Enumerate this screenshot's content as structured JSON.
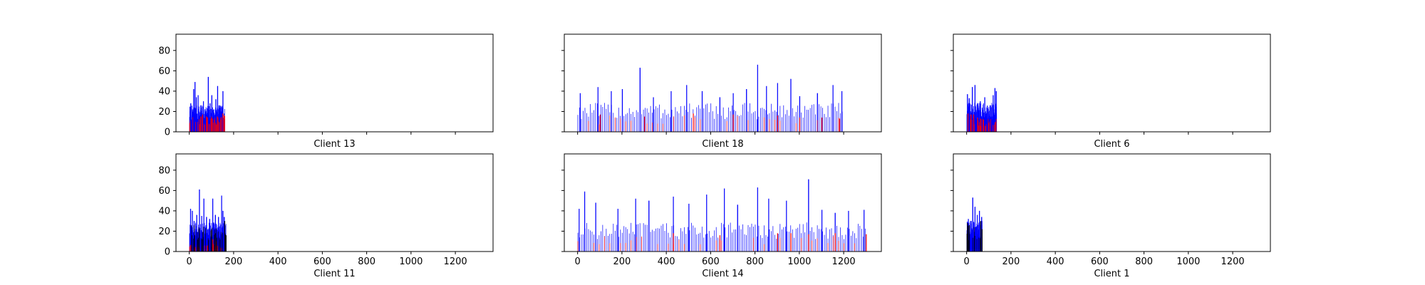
{
  "chart_data": [
    {
      "type": "bar",
      "xlabel": "Client 13",
      "xlim": [
        -60,
        1370
      ],
      "ylim": [
        0,
        96
      ],
      "xticks": [
        0,
        200,
        400,
        600,
        800,
        1000,
        1200
      ],
      "xtick_labels_visible": false,
      "yticks": [
        0,
        20,
        40,
        60,
        80
      ],
      "yticks_visible": true,
      "grid": false,
      "n_bars": 160,
      "series": [
        {
          "color": "#0000ff",
          "peaks": [
            [
              5,
              28
            ],
            [
              12,
              22
            ],
            [
              18,
              42
            ],
            [
              24,
              49
            ],
            [
              30,
              34
            ],
            [
              38,
              36
            ],
            [
              50,
              26
            ],
            [
              62,
              30
            ],
            [
              72,
              20
            ],
            [
              84,
              54
            ],
            [
              92,
              28
            ],
            [
              100,
              36
            ],
            [
              108,
              22
            ],
            [
              118,
              32
            ],
            [
              126,
              45
            ],
            [
              134,
              26
            ],
            [
              142,
              20
            ],
            [
              150,
              40
            ],
            [
              156,
              18
            ]
          ],
          "base": 20
        },
        {
          "color": "#ff0000",
          "peaks": [
            [
              50,
              15
            ],
            [
              58,
              17
            ],
            [
              80,
              14
            ],
            [
              96,
              13
            ],
            [
              112,
              12
            ],
            [
              124,
              15
            ],
            [
              140,
              12
            ],
            [
              150,
              18
            ],
            [
              156,
              16
            ]
          ],
          "base": 12
        }
      ]
    },
    {
      "type": "bar",
      "xlabel": "Client 18",
      "xlim": [
        -60,
        1370
      ],
      "ylim": [
        0,
        96
      ],
      "xticks": [
        0,
        200,
        400,
        600,
        800,
        1000,
        1200
      ],
      "xtick_labels_visible": false,
      "yticks": [
        0,
        20,
        40,
        60,
        80
      ],
      "yticks_visible": false,
      "grid": false,
      "n_bars": 1200,
      "series": [
        {
          "color": "#0000ff",
          "peaks": [
            [
              10,
              38
            ],
            [
              90,
              44
            ],
            [
              150,
              40
            ],
            [
              200,
              42
            ],
            [
              280,
              63
            ],
            [
              340,
              34
            ],
            [
              420,
              40
            ],
            [
              490,
              46
            ],
            [
              560,
              40
            ],
            [
              640,
              34
            ],
            [
              700,
              38
            ],
            [
              760,
              42
            ],
            [
              810,
              66
            ],
            [
              850,
              45
            ],
            [
              900,
              48
            ],
            [
              960,
              52
            ],
            [
              1000,
              35
            ],
            [
              1080,
              38
            ],
            [
              1150,
              46
            ],
            [
              1190,
              40
            ]
          ],
          "base": 22
        },
        {
          "color": "#ff0000",
          "peaks": [
            [
              100,
              17
            ],
            [
              300,
              15
            ],
            [
              520,
              18
            ],
            [
              700,
              17
            ],
            [
              900,
              16
            ],
            [
              1000,
              14
            ],
            [
              1100,
              14
            ],
            [
              1180,
              13
            ]
          ],
          "base": 13
        }
      ]
    },
    {
      "type": "bar",
      "xlabel": "Client 6",
      "xlim": [
        -60,
        1370
      ],
      "ylim": [
        0,
        96
      ],
      "xticks": [
        0,
        200,
        400,
        600,
        800,
        1000,
        1200
      ],
      "xtick_labels_visible": false,
      "yticks": [
        0,
        20,
        40,
        60,
        80
      ],
      "yticks_visible": false,
      "grid": false,
      "n_bars": 135,
      "series": [
        {
          "color": "#0000ff",
          "peaks": [
            [
              2,
              37
            ],
            [
              10,
              33
            ],
            [
              24,
              44
            ],
            [
              36,
              46
            ],
            [
              48,
              28
            ],
            [
              60,
              30
            ],
            [
              80,
              34
            ],
            [
              90,
              24
            ],
            [
              104,
              26
            ],
            [
              118,
              36
            ],
            [
              126,
              43
            ],
            [
              132,
              40
            ]
          ],
          "base": 22
        },
        {
          "color": "#ff0000",
          "peaks": [
            [
              4,
              18
            ],
            [
              18,
              17
            ],
            [
              30,
              17
            ],
            [
              48,
              14
            ],
            [
              60,
              13
            ],
            [
              74,
              12
            ]
          ],
          "base": 10
        }
      ]
    },
    {
      "type": "bar",
      "xlabel": "Client 11",
      "xlim": [
        -60,
        1370
      ],
      "ylim": [
        0,
        96
      ],
      "xticks": [
        0,
        200,
        400,
        600,
        800,
        1000,
        1200
      ],
      "xtick_labels": [
        "0",
        "200",
        "400",
        "600",
        "800",
        "1000",
        "1200"
      ],
      "xtick_labels_visible": true,
      "yticks": [
        0,
        20,
        40,
        60,
        80
      ],
      "yticks_visible": true,
      "grid": false,
      "n_bars": 165,
      "series": [
        {
          "color": "#0000ff",
          "peaks": [
            [
              4,
              42
            ],
            [
              12,
              40
            ],
            [
              20,
              30
            ],
            [
              32,
              36
            ],
            [
              44,
              61
            ],
            [
              54,
              35
            ],
            [
              64,
              52
            ],
            [
              76,
              34
            ],
            [
              90,
              32
            ],
            [
              104,
              52
            ],
            [
              116,
              36
            ],
            [
              130,
              34
            ],
            [
              144,
              55
            ],
            [
              150,
              40
            ],
            [
              156,
              34
            ]
          ],
          "base": 22
        },
        {
          "color": "#ff0000",
          "peaks": [
            [
              104,
              12
            ],
            [
              120,
              10
            ]
          ],
          "base": 6
        },
        {
          "color": "#000000",
          "peaks": [
            [
              158,
              30
            ],
            [
              164,
              16
            ]
          ],
          "base": 20
        }
      ]
    },
    {
      "type": "bar",
      "xlabel": "Client 14",
      "xlim": [
        -60,
        1370
      ],
      "ylim": [
        0,
        96
      ],
      "xticks": [
        0,
        200,
        400,
        600,
        800,
        1000,
        1200
      ],
      "xtick_labels": [
        "0",
        "200",
        "400",
        "600",
        "800",
        "1000",
        "1200"
      ],
      "xtick_labels_visible": true,
      "yticks": [
        0,
        20,
        40,
        60,
        80
      ],
      "yticks_visible": false,
      "grid": false,
      "n_bars": 1300,
      "series": [
        {
          "color": "#0000ff",
          "peaks": [
            [
              5,
              42
            ],
            [
              30,
              59
            ],
            [
              80,
              48
            ],
            [
              180,
              42
            ],
            [
              260,
              52
            ],
            [
              320,
              50
            ],
            [
              430,
              54
            ],
            [
              500,
              47
            ],
            [
              580,
              56
            ],
            [
              660,
              62
            ],
            [
              720,
              46
            ],
            [
              810,
              63
            ],
            [
              860,
              52
            ],
            [
              940,
              50
            ],
            [
              1040,
              71
            ],
            [
              1100,
              41
            ],
            [
              1160,
              38
            ],
            [
              1220,
              40
            ],
            [
              1290,
              41
            ]
          ],
          "base": 22
        },
        {
          "color": "#ff0000",
          "peaks": [
            [
              430,
              18
            ],
            [
              640,
              16
            ],
            [
              900,
              18
            ],
            [
              960,
              18
            ],
            [
              1040,
              17
            ],
            [
              1160,
              18
            ],
            [
              1300,
              17
            ]
          ],
          "base": 12
        }
      ]
    },
    {
      "type": "bar",
      "xlabel": "Client 1",
      "xlim": [
        -60,
        1370
      ],
      "ylim": [
        0,
        96
      ],
      "xticks": [
        0,
        200,
        400,
        600,
        800,
        1000,
        1200
      ],
      "xtick_labels": [
        "0",
        "200",
        "400",
        "600",
        "800",
        "1000",
        "1200"
      ],
      "xtick_labels_visible": true,
      "yticks": [
        0,
        20,
        40,
        60,
        80
      ],
      "yticks_visible": false,
      "grid": false,
      "n_bars": 70,
      "series": [
        {
          "color": "#0000ff",
          "peaks": [
            [
              6,
              32
            ],
            [
              16,
              30
            ],
            [
              26,
              53
            ],
            [
              36,
              44
            ],
            [
              46,
              36
            ],
            [
              56,
              40
            ],
            [
              66,
              34
            ]
          ],
          "base": 24
        },
        {
          "color": "#000000",
          "peaks": [
            [
              2,
              28
            ],
            [
              10,
              26
            ],
            [
              62,
              30
            ],
            [
              68,
              22
            ]
          ],
          "base": 20
        }
      ]
    }
  ]
}
